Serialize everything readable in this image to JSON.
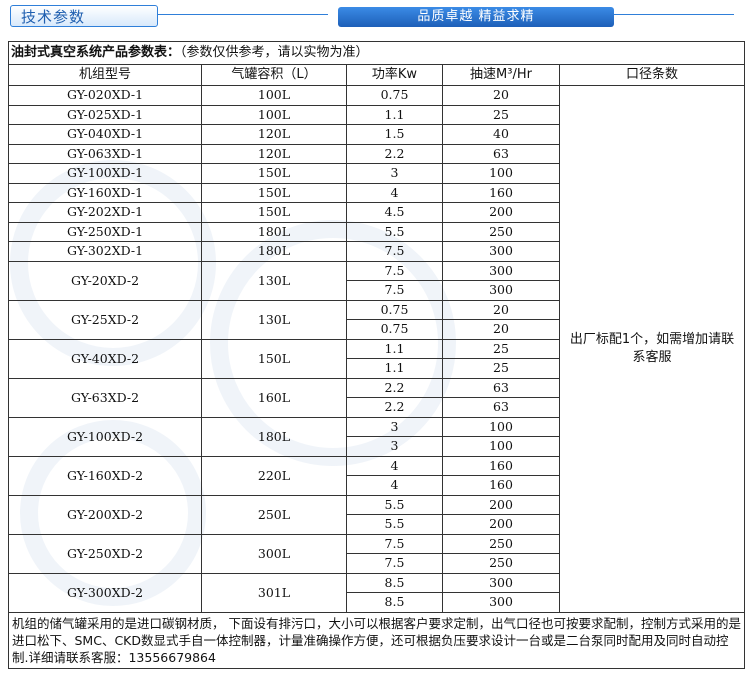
{
  "header": {
    "left_tag": "技术参数",
    "right_tag": "品质卓越  精益求精"
  },
  "table": {
    "caption": "油封式真空系统产品参数表：",
    "caption_note": "（参数仅供参考，请以实物为准）",
    "columns": [
      "机组型号",
      "气罐容积（L）",
      "功率Kw",
      "抽速M³/Hr",
      "口径条数"
    ],
    "ports_text": "出厂标配1个，如需增加请联系客服",
    "single_rows": [
      {
        "model": "GY-020XD-1",
        "tank": "100L",
        "power": "0.75",
        "speed": "20"
      },
      {
        "model": "GY-025XD-1",
        "tank": "100L",
        "power": "1.1",
        "speed": "25"
      },
      {
        "model": "GY-040XD-1",
        "tank": "120L",
        "power": "1.5",
        "speed": "40"
      },
      {
        "model": "GY-063XD-1",
        "tank": "120L",
        "power": "2.2",
        "speed": "63"
      },
      {
        "model": "GY-100XD-1",
        "tank": "150L",
        "power": "3",
        "speed": "100"
      },
      {
        "model": "GY-160XD-1",
        "tank": "150L",
        "power": "4",
        "speed": "160"
      },
      {
        "model": "GY-202XD-1",
        "tank": "150L",
        "power": "4.5",
        "speed": "200"
      },
      {
        "model": "GY-250XD-1",
        "tank": "180L",
        "power": "5.5",
        "speed": "250"
      },
      {
        "model": "GY-302XD-1",
        "tank": "180L",
        "power": "7.5",
        "speed": "300"
      }
    ],
    "double_rows": [
      {
        "model": "GY-20XD-2",
        "tank": "130L",
        "power": [
          "7.5",
          "7.5"
        ],
        "speed": [
          "300",
          "300"
        ]
      },
      {
        "model": "GY-25XD-2",
        "tank": "130L",
        "power": [
          "0.75",
          "0.75"
        ],
        "speed": [
          "20",
          "20"
        ]
      },
      {
        "model": "GY-40XD-2",
        "tank": "150L",
        "power": [
          "1.1",
          "1.1"
        ],
        "speed": [
          "25",
          "25"
        ]
      },
      {
        "model": "GY-63XD-2",
        "tank": "160L",
        "power": [
          "2.2",
          "2.2"
        ],
        "speed": [
          "63",
          "63"
        ]
      },
      {
        "model": "GY-100XD-2",
        "tank": "180L",
        "power": [
          "3",
          "3"
        ],
        "speed": [
          "100",
          "100"
        ]
      },
      {
        "model": "GY-160XD-2",
        "tank": "220L",
        "power": [
          "4",
          "4"
        ],
        "speed": [
          "160",
          "160"
        ]
      },
      {
        "model": "GY-200XD-2",
        "tank": "250L",
        "power": [
          "5.5",
          "5.5"
        ],
        "speed": [
          "200",
          "200"
        ]
      },
      {
        "model": "GY-250XD-2",
        "tank": "300L",
        "power": [
          "7.5",
          "7.5"
        ],
        "speed": [
          "250",
          "250"
        ]
      },
      {
        "model": "GY-300XD-2",
        "tank": "301L",
        "power": [
          "8.5",
          "8.5"
        ],
        "speed": [
          "300",
          "300"
        ]
      }
    ],
    "footer": "机组的储气罐采用的是进口碳钢材质， 下面设有排污口，大小可以根据客户要求定制，出气口径也可按要求配制，控制方式采用的是进口松下、SMC、CKD数显式手自一体控制器，计量准确操作方便，还可根据负压要求设计一台或是二台泵同时配用及同时自动控制.详细请联系客服：13556679864"
  },
  "colors": {
    "accent": "#2f7fd9",
    "border": "#333333"
  }
}
